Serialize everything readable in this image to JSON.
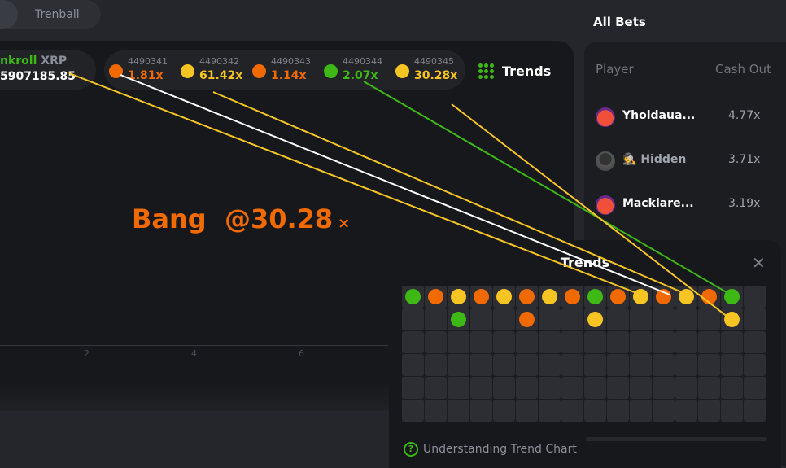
{
  "colors": {
    "orange": "#f06a00",
    "yellow": "#f7c523",
    "green": "#3db814",
    "bg": "#17181b"
  },
  "tabs": [
    {
      "label": ""
    },
    {
      "label": "Trenball"
    }
  ],
  "bankroll": {
    "label_part": "nkroll",
    "currency": "XRP",
    "value": "5907185.85"
  },
  "history": [
    {
      "id": "4490341",
      "multiplier": "1.81x",
      "color": "orange"
    },
    {
      "id": "4490342",
      "multiplier": "61.42x",
      "color": "yellow"
    },
    {
      "id": "4490343",
      "multiplier": "1.14x",
      "color": "orange"
    },
    {
      "id": "4490344",
      "multiplier": "2.07x",
      "color": "green"
    },
    {
      "id": "4490345",
      "multiplier": "30.28x",
      "color": "yellow"
    }
  ],
  "trends_button": {
    "label": "Trends",
    "icon": "dot-grid-icon"
  },
  "game": {
    "bang_label": "Bang",
    "bang_value": "@30.28",
    "bang_unit": "×",
    "x_ticks": [
      "2",
      "4",
      "6"
    ]
  },
  "all_bets": {
    "title": "All Bets",
    "col_player": "Player",
    "col_cashout": "Cash Out",
    "rows": [
      {
        "player": "Yhoidaua...",
        "cashout": "4.77x",
        "avatar": "red-mascot"
      },
      {
        "player": "Hidden",
        "cashout": "3.71x",
        "avatar": "hidden-user",
        "hidden": true
      },
      {
        "player": "Macklare...",
        "cashout": "3.19x",
        "avatar": "red-mascot"
      }
    ]
  },
  "trends_modal": {
    "title": "Trends",
    "help": "Understanding Trend Chart",
    "columns": 16,
    "rows": 6,
    "grid": [
      [
        "G",
        "O",
        "Y",
        "O",
        "Y",
        "O",
        "Y",
        "O",
        "G",
        "O",
        "Y",
        "O",
        "Y",
        "O",
        "G",
        ""
      ],
      [
        "",
        "",
        "G",
        "",
        "",
        "O",
        "",
        "",
        "Y",
        "",
        "",
        "",
        "",
        "",
        "Y",
        ""
      ],
      [
        "",
        "",
        "",
        "",
        "",
        "",
        "",
        "",
        "",
        "",
        "",
        "",
        "",
        "",
        "",
        ""
      ],
      [
        "",
        "",
        "",
        "",
        "",
        "",
        "",
        "",
        "",
        "",
        "",
        "",
        "",
        "",
        "",
        ""
      ],
      [
        "",
        "",
        "",
        "",
        "",
        "",
        "",
        "",
        "",
        "",
        "",
        "",
        "",
        "",
        "",
        ""
      ],
      [
        "",
        "",
        "",
        "",
        "",
        "",
        "",
        "",
        "",
        "",
        "",
        "",
        "",
        "",
        "",
        ""
      ]
    ]
  }
}
